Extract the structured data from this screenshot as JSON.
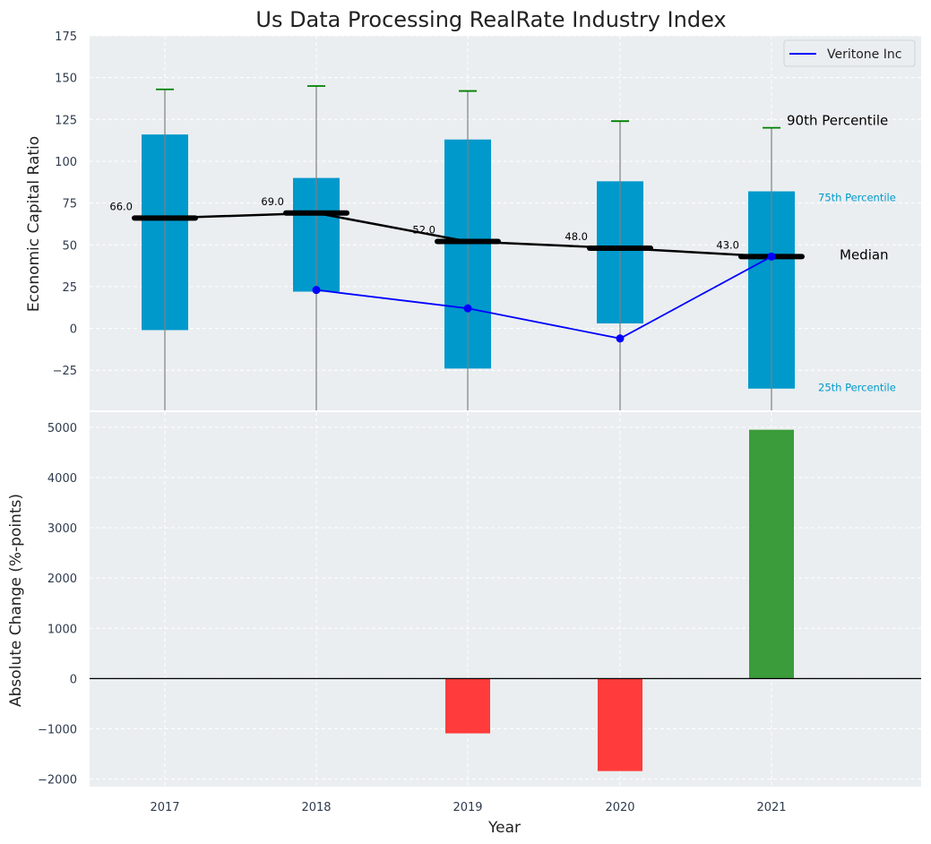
{
  "title": "Us Data Processing RealRate Industry Index",
  "chart_data": [
    {
      "type": "box",
      "panel": "top",
      "ylabel": "Economic Capital Ratio",
      "ylim": [
        -49,
        175
      ],
      "yticks": [
        175,
        150,
        125,
        100,
        75,
        50,
        25,
        0,
        -25
      ],
      "ytick_labels": [
        "175",
        "150",
        "125",
        "100",
        "75",
        "50",
        "25",
        "0",
        "−25"
      ],
      "grid": true,
      "categories": [
        "2017",
        "2018",
        "2019",
        "2020",
        "2021"
      ],
      "percentile_25": [
        -1,
        22,
        -24,
        3,
        -36
      ],
      "percentile_75": [
        116,
        90,
        113,
        88,
        82
      ],
      "percentile_90": [
        143,
        145,
        142,
        124,
        120
      ],
      "median": [
        66,
        69,
        52,
        48,
        43
      ],
      "median_labels": [
        "66.0",
        "69.0",
        "52.0",
        "48.0",
        "43.0"
      ],
      "series": [
        {
          "name": "Veritone Inc",
          "values": [
            null,
            23,
            12,
            -6,
            43
          ]
        }
      ],
      "legend_position": "top-right",
      "annotations": {
        "p90": "90th Percentile",
        "p75": "75th Percentile",
        "median": "Median",
        "p25": "25th Percentile"
      },
      "colors": {
        "box": "#0099cc",
        "median": "#000000",
        "p90_cap": "#008000",
        "whisker": "#808080",
        "company_line": "#0000ff",
        "background": "#eaeef0",
        "grid": "#ffffff"
      }
    },
    {
      "type": "bar",
      "panel": "bottom",
      "xlabel": "Year",
      "ylabel": "Absolute Change (%-points)",
      "ylim": [
        -2150,
        5300
      ],
      "yticks": [
        5000,
        4000,
        3000,
        2000,
        1000,
        0,
        -1000,
        -2000
      ],
      "ytick_labels": [
        "5000",
        "4000",
        "3000",
        "2000",
        "1000",
        "0",
        "−1000",
        "−2000"
      ],
      "grid": true,
      "categories": [
        "2017",
        "2018",
        "2019",
        "2020",
        "2021"
      ],
      "values": [
        0,
        0,
        -1090,
        -1840,
        4950
      ],
      "colors": {
        "positive": "#3a9c3a",
        "negative": "#ff3b3b",
        "zero_line": "#000000"
      }
    }
  ]
}
